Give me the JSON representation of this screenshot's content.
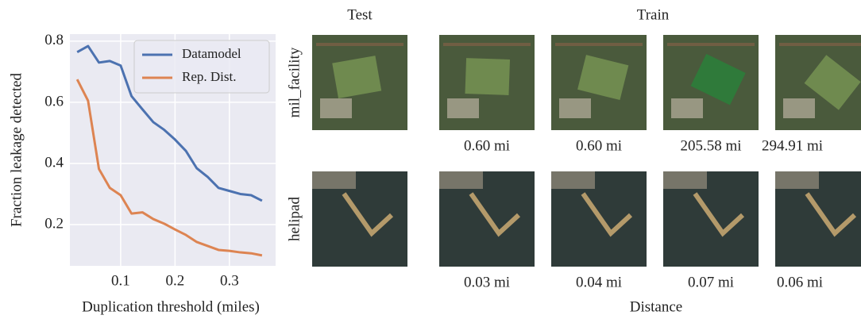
{
  "chart_data": {
    "type": "line",
    "xlabel": "Duplication threshold (miles)",
    "ylabel": "Fraction leakage detected",
    "x": [
      0.02,
      0.04,
      0.06,
      0.08,
      0.1,
      0.12,
      0.14,
      0.16,
      0.18,
      0.2,
      0.22,
      0.24,
      0.26,
      0.28,
      0.3,
      0.32,
      0.34,
      0.36
    ],
    "series": [
      {
        "name": "Datamodel",
        "color": "#4c72b0",
        "values": [
          0.764,
          0.784,
          0.73,
          0.735,
          0.72,
          0.62,
          0.577,
          0.535,
          0.51,
          0.478,
          0.441,
          0.384,
          0.356,
          0.32,
          0.31,
          0.3,
          0.296,
          0.278
        ]
      },
      {
        "name": "Rep. Dist.",
        "color": "#dd8452",
        "values": [
          0.675,
          0.605,
          0.382,
          0.32,
          0.296,
          0.236,
          0.24,
          0.218,
          0.203,
          0.184,
          0.166,
          0.143,
          0.13,
          0.117,
          0.114,
          0.109,
          0.106,
          0.099
        ]
      }
    ],
    "xlim": [
      0.0066,
      0.385
    ],
    "ylim": [
      0.065,
      0.823
    ],
    "xticks": [
      0.1,
      0.2,
      0.3
    ],
    "yticks": [
      0.2,
      0.4,
      0.6,
      0.8
    ],
    "grid": true,
    "legend": "upper right"
  },
  "image_grid": {
    "test_header": "Test",
    "train_header": "Train",
    "xlabel": "Distance",
    "rows": [
      {
        "label": "mil_facility",
        "distances": [
          "0.60 mi",
          "0.60 mi",
          "205.58 mi",
          "294.91 mi"
        ]
      },
      {
        "label": "helipad",
        "distances": [
          "0.03 mi",
          "0.04 mi",
          "0.07 mi",
          "0.06 mi"
        ]
      }
    ]
  }
}
